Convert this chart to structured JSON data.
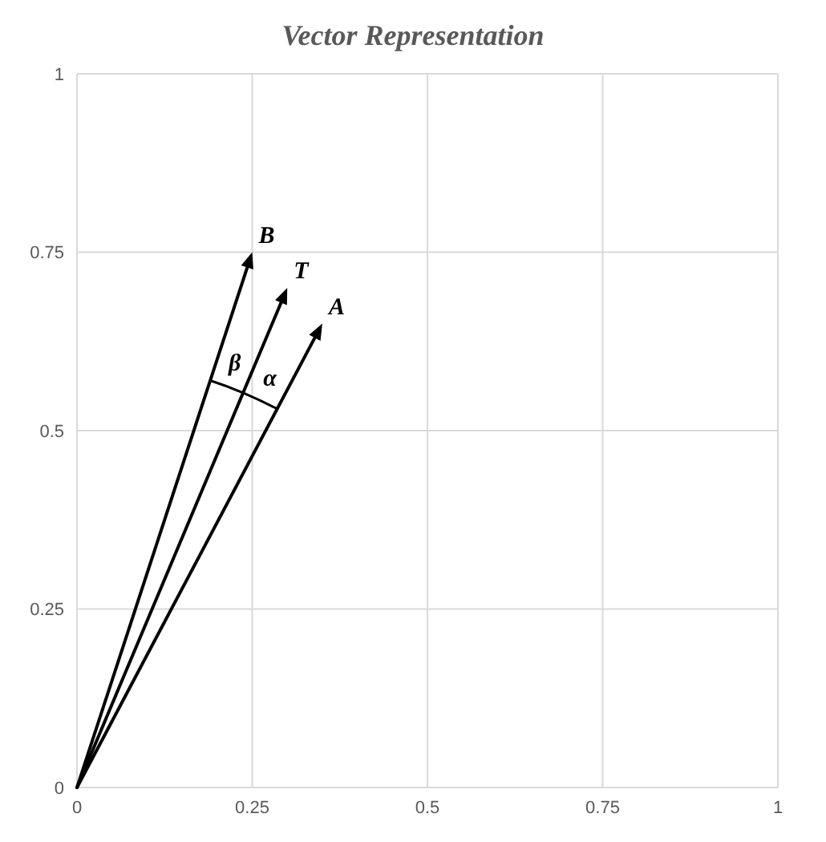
{
  "chart_data": {
    "type": "line",
    "title": "Vector Representation",
    "annotations": [
      "B",
      "T",
      "A",
      "β",
      "α"
    ],
    "xlim": [
      0,
      1
    ],
    "ylim": [
      0,
      1
    ],
    "xticks": [
      0,
      0.25,
      0.5,
      0.75,
      1
    ],
    "yticks": [
      0,
      0.25,
      0.5,
      0.75,
      1
    ],
    "grid": true
  }
}
